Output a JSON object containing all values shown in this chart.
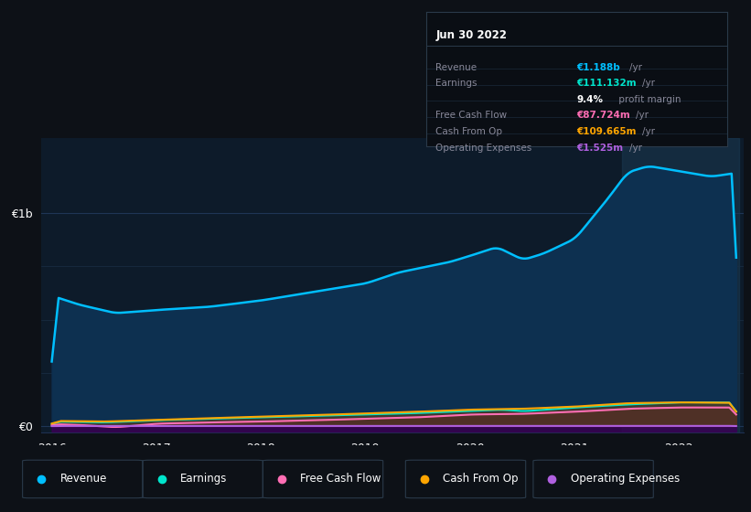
{
  "bg_color": "#0d1117",
  "plot_bg_color": "#0d1b2a",
  "grid_color": "#1e3050",
  "title_date": "Jun 30 2022",
  "tooltip_lines": [
    {
      "label": "Jun 30 2022",
      "value": null,
      "val_color": null,
      "is_title": true
    },
    {
      "label": "Revenue",
      "value": "€1.188b /yr",
      "val_color": "#00bfff",
      "is_title": false
    },
    {
      "label": "Earnings",
      "value": "€111.132m /yr",
      "val_color": "#00e5cc",
      "is_title": false
    },
    {
      "label": "",
      "value": "9.4% profit margin",
      "val_color": "bold_white",
      "is_title": false
    },
    {
      "label": "Free Cash Flow",
      "value": "€87.724m /yr",
      "val_color": "#ff6eb4",
      "is_title": false
    },
    {
      "label": "Cash From Op",
      "value": "€109.665m /yr",
      "val_color": "#ffa500",
      "is_title": false
    },
    {
      "label": "Operating Expenses",
      "value": "€1.525m /yr",
      "val_color": "#b060e0",
      "is_title": false
    }
  ],
  "legend": [
    {
      "label": "Revenue",
      "color": "#00bfff"
    },
    {
      "label": "Earnings",
      "color": "#00e5cc"
    },
    {
      "label": "Free Cash Flow",
      "color": "#ff6eb4"
    },
    {
      "label": "Cash From Op",
      "color": "#ffa500"
    },
    {
      "label": "Operating Expenses",
      "color": "#b060e0"
    }
  ],
  "highlight_x_start": 2021.46,
  "highlight_x_end": 2022.58,
  "xlim": [
    2015.9,
    2022.62
  ],
  "ylim": [
    -30000000,
    1350000000
  ],
  "y_ticks": [
    0,
    1000000000
  ],
  "y_tick_labels": [
    "€0",
    "€1b"
  ]
}
